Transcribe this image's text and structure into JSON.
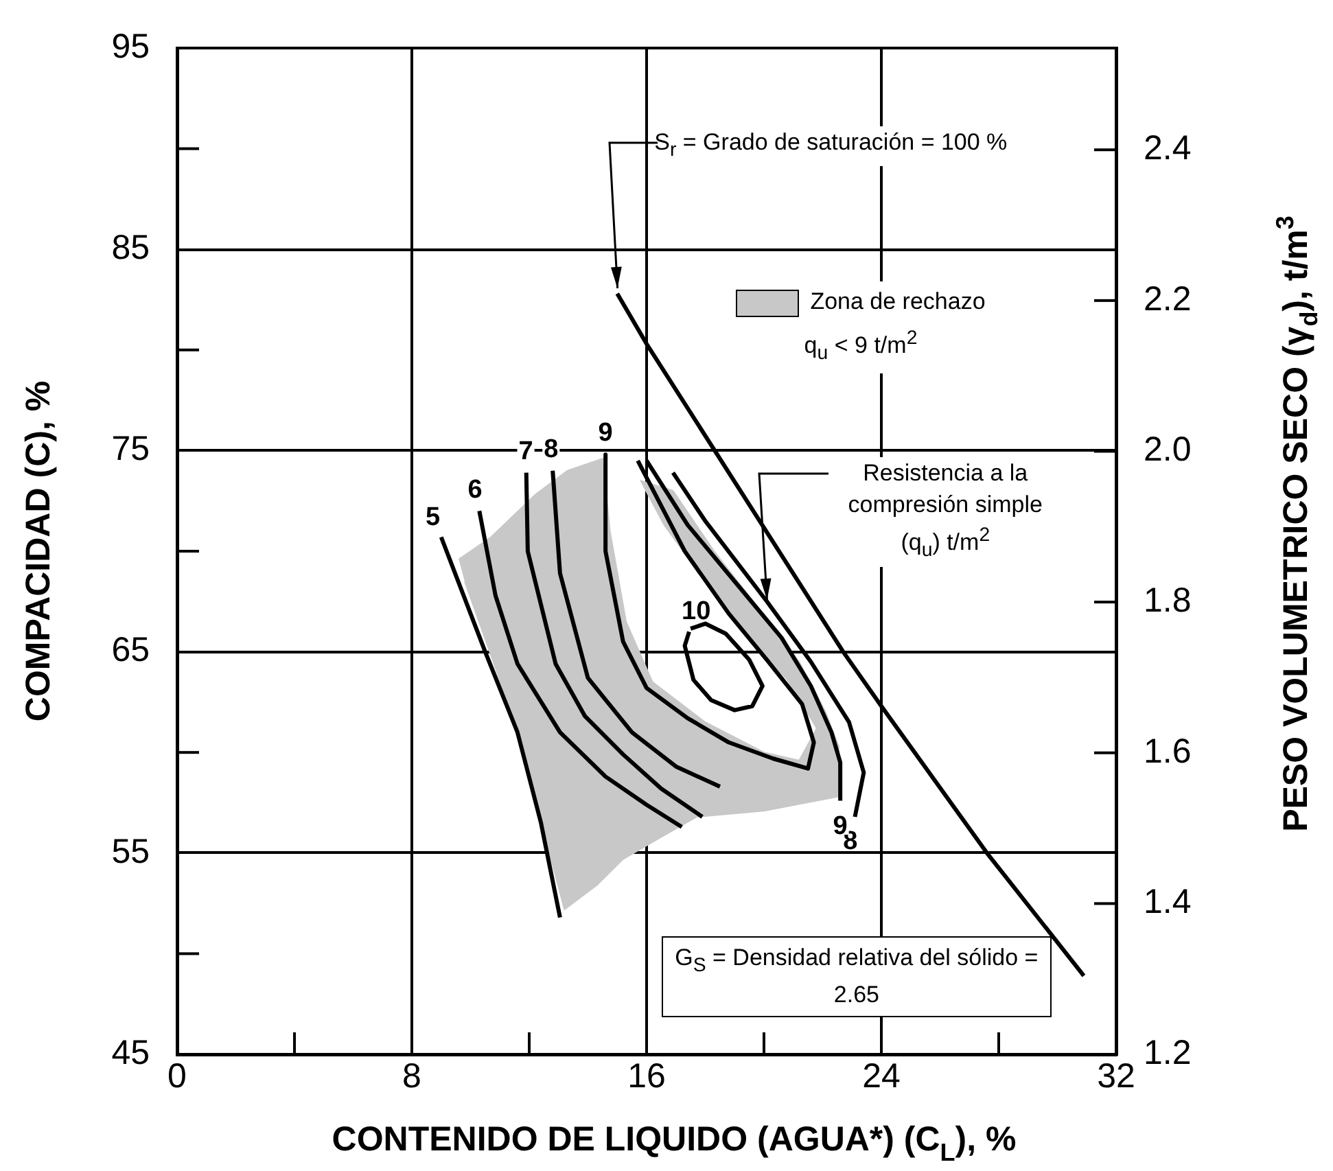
{
  "chart_data": {
    "type": "line",
    "xlabel": "CONTENIDO DE LIQUIDO (AGUA*) (C$_{L}$), %",
    "ylabel": "COMPACIDAD (C), %",
    "y2label": "PESO VOLUMETRICO SECO (γ$_{d}$), t/m$^{3}$",
    "xlim": [
      0,
      32
    ],
    "xticks": [
      0,
      {
        "value": 4,
        "label": null
      },
      8,
      {
        "value": 12,
        "label": null
      },
      16,
      {
        "value": 20,
        "label": null
      },
      24,
      {
        "value": 28,
        "label": null
      },
      32
    ],
    "ylim": [
      45,
      95
    ],
    "yticks": [
      45,
      {
        "value": 50,
        "label": null
      },
      55,
      {
        "value": 60,
        "label": null
      },
      65,
      {
        "value": 70,
        "label": null
      },
      75,
      {
        "value": 80,
        "label": null
      },
      85,
      {
        "value": 90,
        "label": null
      },
      95
    ],
    "y2lim": [
      1.2,
      2.535
    ],
    "y2ticks": [
      1.2,
      1.4,
      1.6,
      1.8,
      {
        "value": 2,
        "label": "2.0"
      },
      2.2,
      2.4
    ],
    "grid": true,
    "legend": "top right",
    "marker": "none",
    "series": [
      {
        "type": "area",
        "name": "Zona de rechazo q$_{u}$ < 9 t/m$^{2}$",
        "color": "#c8c8c8",
        "x": [
          9.6,
          10.7,
          11.2,
          12.2,
          13.3,
          14.5,
          14.75,
          15.3,
          16.2,
          18,
          20,
          21.2,
          21.8,
          20.8,
          19.4,
          18.1,
          16.6,
          15.8,
          16.9,
          18.3,
          19.9,
          21.2,
          22.1,
          22.55,
          22.5,
          20,
          17.7,
          16.5,
          15.2,
          14.3,
          13.2,
          12.6,
          11.8,
          10.9,
          9.8
        ],
        "values": [
          69.6,
          70.7,
          71.4,
          72.8,
          74,
          74.6,
          71,
          66.5,
          63.5,
          61.5,
          60,
          59.6,
          61.2,
          63.6,
          65.8,
          68.3,
          71.3,
          73.5,
          73,
          70,
          67,
          64.5,
          62,
          60.3,
          57.8,
          57.1,
          56.8,
          55.8,
          54.7,
          53.4,
          52.2,
          55.5,
          60,
          64,
          68.5
        ]
      },
      {
        "type": "line",
        "color": "#000000",
        "x": [
          15.0,
          16,
          22.7,
          24,
          27.6,
          30.9
        ],
        "values": [
          82.8,
          80.3,
          65,
          62.3,
          55,
          48.9
        ]
      },
      {
        "type": "line",
        "name": "5",
        "color": "#000000",
        "x": [
          9.0,
          10.5,
          11.6,
          12.4,
          13.05
        ],
        "values": [
          70.7,
          65,
          61,
          56.5,
          51.8
        ]
      },
      {
        "type": "line",
        "name": "6",
        "color": "#000000",
        "x": [
          10.3,
          10.85,
          11.6,
          13.05,
          14.6,
          16.0,
          17.2
        ],
        "values": [
          72.0,
          67.8,
          64.4,
          61.0,
          58.8,
          57.4,
          56.3
        ]
      },
      {
        "type": "line",
        "name": "7",
        "color": "#000000",
        "x": [
          11.9,
          11.95,
          12.9,
          13.9,
          15.2,
          16.5,
          17.9
        ],
        "values": [
          73.9,
          70,
          64.4,
          61.8,
          59.9,
          58.2,
          56.8
        ]
      },
      {
        "type": "line",
        "name": "8",
        "color": "#000000",
        "x": [
          12.8,
          13.05,
          14.0,
          15.5,
          17.0,
          18.5,
          null,
          23.1,
          23.4,
          22.9,
          21.6,
          20.1,
          18.0,
          16.9
        ],
        "values": [
          74.0,
          68.9,
          63.7,
          61.0,
          59.3,
          58.3,
          null,
          56.8,
          59,
          61.5,
          64.5,
          67.5,
          71.5,
          73.9
        ]
      },
      {
        "type": "line",
        "name": "9",
        "color": "#000000",
        "x": [
          14.6,
          14.6,
          15.2,
          16,
          17.4,
          18.8,
          20.3,
          21.5,
          21.7,
          21.3,
          20.1,
          18.8,
          17.3,
          15.7,
          null,
          22.6,
          22.6,
          22.3,
          21.6,
          20.6,
          19.0,
          17.4,
          16.0
        ],
        "values": [
          74.8,
          70,
          65.5,
          63.2,
          61.7,
          60.5,
          59.7,
          59.2,
          60.5,
          62.4,
          64.6,
          66.9,
          70,
          74.5,
          null,
          57.6,
          59.5,
          61,
          63.3,
          65.7,
          68.5,
          71.3,
          74.5
        ]
      },
      {
        "type": "line",
        "name": "10",
        "color": "#000000",
        "x": [
          17.45,
          17.3,
          17.6,
          18.2,
          19.0,
          19.6,
          19.95,
          19.5,
          18.7,
          18.0,
          17.5
        ],
        "values": [
          66.0,
          65.3,
          63.6,
          62.6,
          62.1,
          62.3,
          63.3,
          64.6,
          65.9,
          66.4,
          66.15
        ]
      }
    ],
    "annotations": [
      {
        "text": "S$_{r}$ = Grado de saturación = 100 %",
        "x": 15.0,
        "y": 82.8
      },
      {
        "text": "Resistencia a la compresión simple (q$_{u}$) t/m$^{2}$",
        "x": 20.1,
        "y": 67.3
      },
      "G$_{S}$ = Densidad relativa del sólido = 2.65"
    ]
  }
}
